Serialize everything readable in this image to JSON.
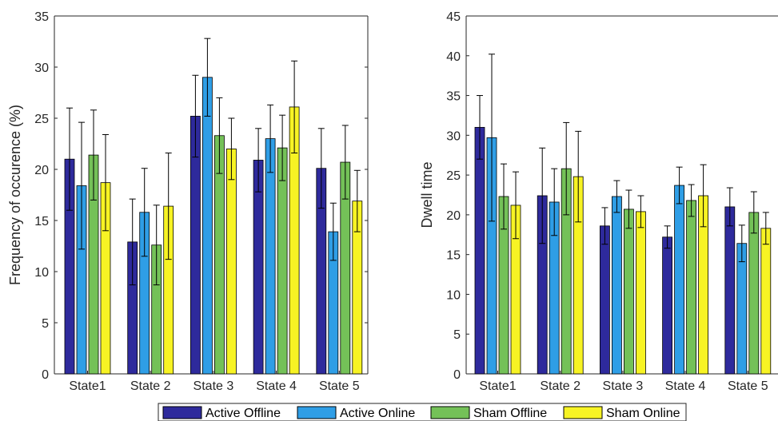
{
  "legend": {
    "items": [
      {
        "label": "Active Offline",
        "color": "#2e2a9c"
      },
      {
        "label": "Active Online",
        "color": "#2f9ee6"
      },
      {
        "label": "Sham Offline",
        "color": "#74c158"
      },
      {
        "label": "Sham Online",
        "color": "#f7f324"
      }
    ]
  },
  "chart_data": [
    {
      "type": "bar",
      "title": "",
      "xlabel": "",
      "ylabel": "Frequency of occurence (%)",
      "ylim": [
        0,
        35
      ],
      "yticks": [
        0,
        5,
        10,
        15,
        20,
        25,
        30,
        35
      ],
      "categories": [
        "State1",
        "State 2",
        "State 3",
        "State 4",
        "State 5"
      ],
      "series": [
        {
          "name": "Active Offline",
          "values": [
            21.0,
            12.9,
            25.2,
            20.9,
            20.1
          ],
          "error": [
            5.0,
            4.2,
            4.0,
            3.1,
            3.9
          ]
        },
        {
          "name": "Active Online",
          "values": [
            18.4,
            15.8,
            29.0,
            23.0,
            13.9
          ],
          "error": [
            6.2,
            4.3,
            3.8,
            3.3,
            2.8
          ]
        },
        {
          "name": "Sham Offline",
          "values": [
            21.4,
            12.6,
            23.3,
            22.1,
            20.7
          ],
          "error": [
            4.4,
            3.9,
            3.7,
            3.2,
            3.6
          ]
        },
        {
          "name": "Sham Online",
          "values": [
            18.7,
            16.4,
            22.0,
            26.1,
            16.9
          ],
          "error": [
            4.7,
            5.2,
            3.0,
            4.5,
            3.0
          ]
        }
      ]
    },
    {
      "type": "bar",
      "title": "",
      "xlabel": "",
      "ylabel": "Dwell time",
      "ylim": [
        0,
        45
      ],
      "yticks": [
        0,
        5,
        10,
        15,
        20,
        25,
        30,
        35,
        40,
        45
      ],
      "categories": [
        "State1",
        "State 2",
        "State 3",
        "State 4",
        "State 5"
      ],
      "series": [
        {
          "name": "Active Offline",
          "values": [
            31.0,
            22.4,
            18.6,
            17.2,
            21.0
          ],
          "error": [
            4.0,
            6.0,
            2.3,
            1.4,
            2.4
          ]
        },
        {
          "name": "Active Online",
          "values": [
            29.7,
            21.6,
            22.3,
            23.7,
            16.4
          ],
          "error": [
            10.5,
            4.2,
            2.0,
            2.3,
            2.3
          ]
        },
        {
          "name": "Sham Offline",
          "values": [
            22.3,
            25.8,
            20.7,
            21.8,
            20.3
          ],
          "error": [
            4.1,
            5.8,
            2.4,
            2.0,
            2.6
          ]
        },
        {
          "name": "Sham Online",
          "values": [
            21.2,
            24.8,
            20.4,
            22.4,
            18.3
          ],
          "error": [
            4.2,
            5.7,
            2.0,
            3.9,
            2.0
          ]
        }
      ]
    }
  ]
}
